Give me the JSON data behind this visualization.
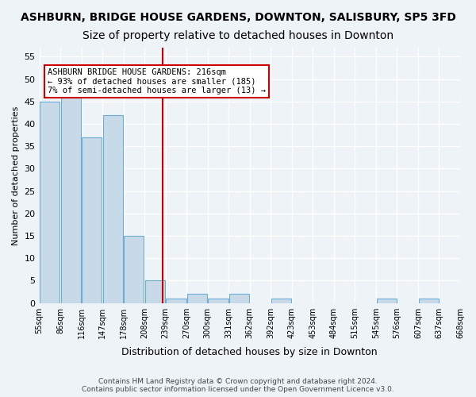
{
  "title": "ASHBURN, BRIDGE HOUSE GARDENS, DOWNTON, SALISBURY, SP5 3FD",
  "subtitle": "Size of property relative to detached houses in Downton",
  "xlabel": "Distribution of detached houses by size in Downton",
  "ylabel": "Number of detached properties",
  "bin_labels": [
    "55sqm",
    "86sqm",
    "116sqm",
    "147sqm",
    "178sqm",
    "208sqm",
    "239sqm",
    "270sqm",
    "300sqm",
    "331sqm",
    "362sqm",
    "392sqm",
    "423sqm",
    "453sqm",
    "484sqm",
    "515sqm",
    "545sqm",
    "576sqm",
    "607sqm",
    "637sqm",
    "668sqm"
  ],
  "bar_values": [
    45,
    46,
    37,
    42,
    15,
    5,
    1,
    2,
    1,
    2,
    0,
    1,
    0,
    0,
    0,
    0,
    1,
    0,
    1,
    0
  ],
  "bar_color": "#c8d9e8",
  "bar_edge_color": "#6aaed6",
  "vline_x": 5.35,
  "vline_color": "#cc0000",
  "annotation_text": "ASHBURN BRIDGE HOUSE GARDENS: 216sqm\n← 93% of detached houses are smaller (185)\n7% of semi-detached houses are larger (13) →",
  "annotation_box_color": "#ffffff",
  "annotation_box_edge": "#cc0000",
  "ylim": [
    0,
    57
  ],
  "yticks": [
    0,
    5,
    10,
    15,
    20,
    25,
    30,
    35,
    40,
    45,
    50,
    55
  ],
  "footer": "Contains HM Land Registry data © Crown copyright and database right 2024.\nContains public sector information licensed under the Open Government Licence v3.0.",
  "bg_color": "#eef3f8",
  "grid_color": "#ffffff",
  "title_fontsize": 10,
  "subtitle_fontsize": 10
}
